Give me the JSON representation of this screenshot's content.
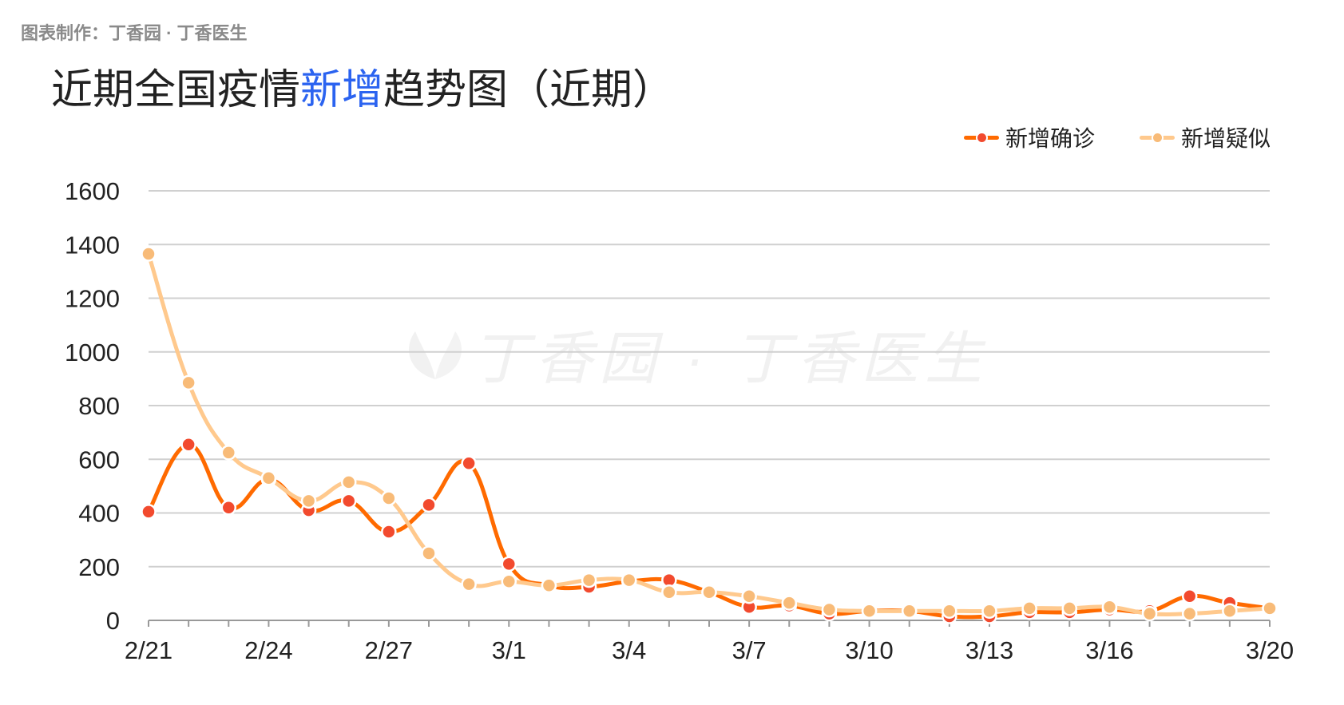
{
  "credit": "图表制作：丁香园 · 丁香医生",
  "title": {
    "before": "近期全国疫情",
    "highlight": "新增",
    "after": "趋势图（近期）"
  },
  "watermark": "丁香园 · 丁香医生",
  "colors": {
    "confirmed": "#ff6a00",
    "confirmed_dot": "#f24a2e",
    "suspected": "#ffc98d",
    "suspected_dot": "#f8bb78",
    "title_highlight": "#2b63f0"
  },
  "chart_data": {
    "type": "line",
    "x": [
      "2/21",
      "2/22",
      "2/23",
      "2/24",
      "2/25",
      "2/26",
      "2/27",
      "2/28",
      "2/29",
      "3/1",
      "3/2",
      "3/3",
      "3/4",
      "3/5",
      "3/6",
      "3/7",
      "3/8",
      "3/9",
      "3/10",
      "3/11",
      "3/12",
      "3/13",
      "3/14",
      "3/15",
      "3/16",
      "3/17",
      "3/18",
      "3/19",
      "3/20"
    ],
    "x_tick_labels": [
      "2/21",
      "2/24",
      "2/27",
      "3/1",
      "3/4",
      "3/7",
      "3/10",
      "3/13",
      "3/16",
      "3/20"
    ],
    "ylim": [
      0,
      1600
    ],
    "y_ticks": [
      "0",
      "200",
      "400",
      "600",
      "800",
      "1000",
      "1200",
      "1400",
      "1600"
    ],
    "grid": true,
    "legend_position": "top-right",
    "series": [
      {
        "name": "新增确诊",
        "values": [
          405,
          655,
          420,
          525,
          410,
          445,
          330,
          430,
          585,
          210,
          130,
          125,
          145,
          150,
          105,
          50,
          55,
          25,
          35,
          35,
          15,
          15,
          30,
          30,
          40,
          35,
          90,
          65,
          45
        ]
      },
      {
        "name": "新增疑似",
        "values": [
          1365,
          885,
          625,
          530,
          445,
          515,
          455,
          250,
          135,
          145,
          130,
          150,
          150,
          105,
          105,
          90,
          65,
          40,
          35,
          35,
          35,
          35,
          45,
          45,
          50,
          25,
          25,
          35,
          45
        ]
      }
    ]
  }
}
